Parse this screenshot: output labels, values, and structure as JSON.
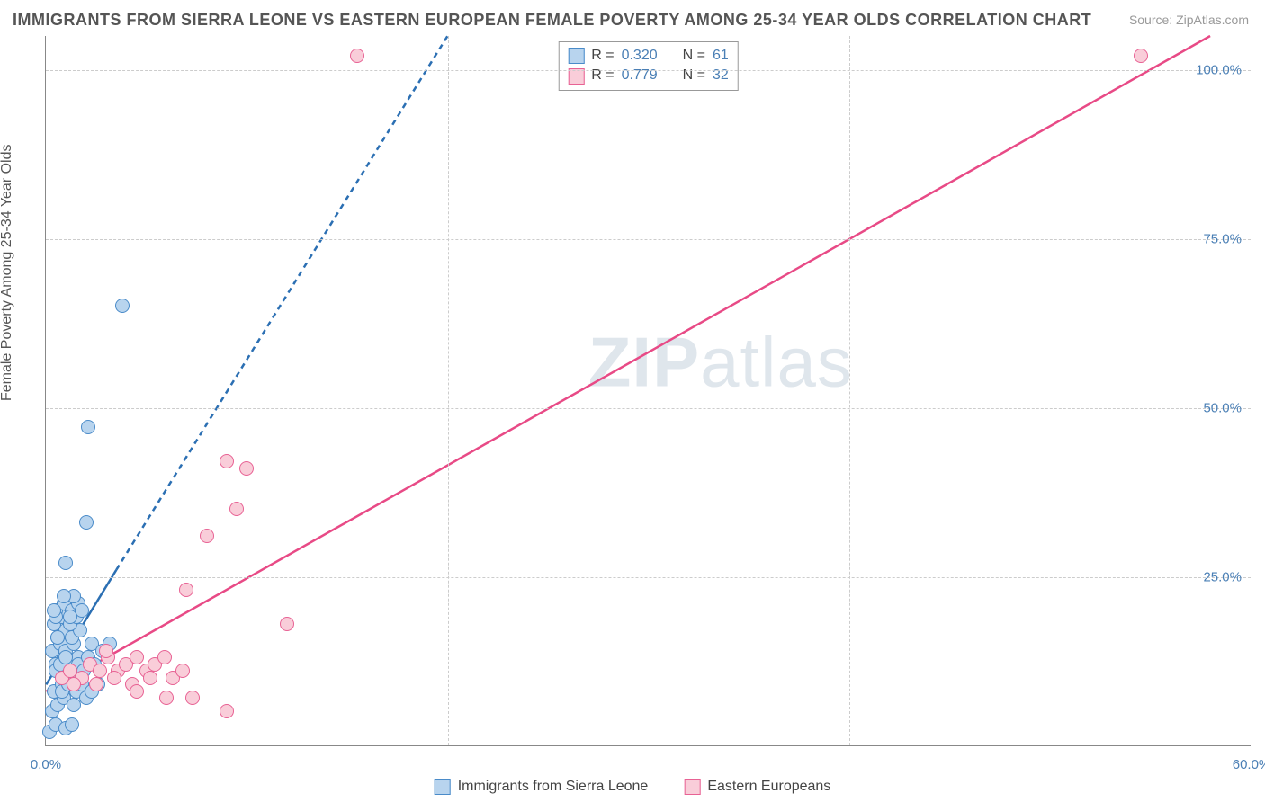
{
  "title": "IMMIGRANTS FROM SIERRA LEONE VS EASTERN EUROPEAN FEMALE POVERTY AMONG 25-34 YEAR OLDS CORRELATION CHART",
  "source": "Source: ZipAtlas.com",
  "watermark": "ZIPatlas",
  "ylabel": "Female Poverty Among 25-34 Year Olds",
  "chart": {
    "type": "scatter",
    "background_color": "#ffffff",
    "grid_color": "#cccccc",
    "axis_color": "#888888",
    "xlim": [
      0,
      60
    ],
    "ylim": [
      0,
      105
    ],
    "xticks": [
      0,
      20,
      40,
      60
    ],
    "xtick_labels": [
      "0.0%",
      "",
      "",
      "60.0%"
    ],
    "yticks": [
      25,
      50,
      75,
      100
    ],
    "ytick_labels": [
      "25.0%",
      "50.0%",
      "75.0%",
      "100.0%"
    ],
    "tick_label_color": "#4a7fb5",
    "tick_fontsize": 15,
    "axis_label_fontsize": 16,
    "axis_label_color": "#555555",
    "marker_radius": 8,
    "series": [
      {
        "name": "Immigrants from Sierra Leone",
        "label": "Immigrants from Sierra Leone",
        "R": "0.320",
        "N": "61",
        "fill": "#b8d4ee",
        "stroke": "#4a8bc9",
        "trend_color": "#2b6fb3",
        "trend_style": "solid_then_dashed",
        "trend_solid": {
          "x1": 0,
          "y1": 9,
          "x2": 3.5,
          "y2": 26
        },
        "trend_dashed": {
          "x1": 3.5,
          "y1": 26,
          "x2": 20,
          "y2": 105
        },
        "points": [
          [
            0.2,
            2
          ],
          [
            0.5,
            3
          ],
          [
            1.0,
            2.5
          ],
          [
            1.3,
            3
          ],
          [
            0.3,
            5
          ],
          [
            0.6,
            6
          ],
          [
            0.9,
            7
          ],
          [
            1.4,
            6
          ],
          [
            0.4,
            8
          ],
          [
            0.8,
            9
          ],
          [
            1.1,
            10
          ],
          [
            1.5,
            11
          ],
          [
            0.5,
            12
          ],
          [
            0.9,
            13
          ],
          [
            1.2,
            12
          ],
          [
            1.6,
            13
          ],
          [
            0.3,
            14
          ],
          [
            0.7,
            15
          ],
          [
            1.0,
            14
          ],
          [
            1.4,
            15
          ],
          [
            0.6,
            16
          ],
          [
            1.0,
            17
          ],
          [
            1.3,
            16
          ],
          [
            1.7,
            17
          ],
          [
            0.4,
            18
          ],
          [
            0.8,
            19
          ],
          [
            1.2,
            18
          ],
          [
            1.5,
            19
          ],
          [
            0.5,
            20
          ],
          [
            0.9,
            21
          ],
          [
            1.3,
            20
          ],
          [
            1.6,
            21
          ],
          [
            0.5,
            11
          ],
          [
            0.7,
            12
          ],
          [
            1.0,
            13
          ],
          [
            1.3,
            10
          ],
          [
            1.6,
            12
          ],
          [
            1.9,
            11
          ],
          [
            2.1,
            13
          ],
          [
            2.4,
            12
          ],
          [
            0.8,
            8
          ],
          [
            1.1,
            9
          ],
          [
            1.5,
            8
          ],
          [
            1.8,
            9
          ],
          [
            2.0,
            7
          ],
          [
            2.3,
            8
          ],
          [
            2.6,
            9
          ],
          [
            0.5,
            19
          ],
          [
            0.4,
            20
          ],
          [
            1.4,
            22
          ],
          [
            1.8,
            20
          ],
          [
            2.3,
            15
          ],
          [
            2.8,
            14
          ],
          [
            3.2,
            15
          ],
          [
            1.0,
            27
          ],
          [
            2.1,
            47
          ],
          [
            2.0,
            33
          ],
          [
            3.8,
            65
          ],
          [
            0.9,
            22
          ],
          [
            1.2,
            19
          ],
          [
            0.6,
            16
          ]
        ]
      },
      {
        "name": "Eastern Europeans",
        "label": "Eastern Europeans",
        "R": "0.779",
        "N": "32",
        "fill": "#f9cdd9",
        "stroke": "#e86294",
        "trend_color": "#e84a86",
        "trend_style": "solid",
        "trend_solid": {
          "x1": 0,
          "y1": 8,
          "x2": 58,
          "y2": 105
        },
        "points": [
          [
            0.8,
            10
          ],
          [
            1.2,
            11
          ],
          [
            1.8,
            10
          ],
          [
            2.2,
            12
          ],
          [
            2.7,
            11
          ],
          [
            3.1,
            13
          ],
          [
            3.6,
            11
          ],
          [
            4.0,
            12
          ],
          [
            4.5,
            13
          ],
          [
            5.0,
            11
          ],
          [
            5.4,
            12
          ],
          [
            5.9,
            13
          ],
          [
            6.3,
            10
          ],
          [
            6.8,
            11
          ],
          [
            7.3,
            7
          ],
          [
            1.4,
            9
          ],
          [
            2.5,
            9
          ],
          [
            3.4,
            10
          ],
          [
            4.3,
            9
          ],
          [
            5.2,
            10
          ],
          [
            7.0,
            23
          ],
          [
            8.0,
            31
          ],
          [
            9.0,
            42
          ],
          [
            10.0,
            41
          ],
          [
            9.5,
            35
          ],
          [
            12.0,
            18
          ],
          [
            9.0,
            5
          ],
          [
            6.0,
            7
          ],
          [
            4.5,
            8
          ],
          [
            15.5,
            102
          ],
          [
            54.5,
            102
          ],
          [
            3.0,
            14
          ]
        ]
      }
    ]
  },
  "legend": {
    "r_label": "R =",
    "n_label": "N ="
  }
}
